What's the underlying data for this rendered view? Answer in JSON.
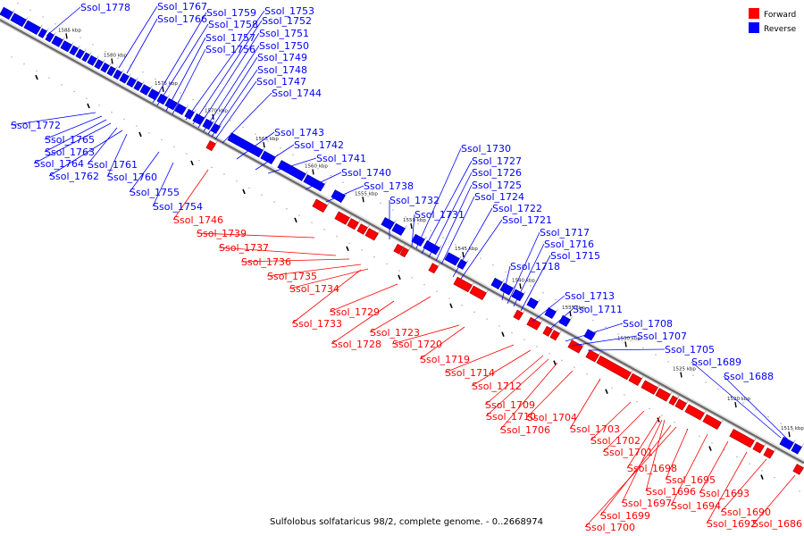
{
  "caption": "Sulfolobus solfataricus 98/2, complete genome. - 0..2668974",
  "legend": [
    {
      "label": "Forward",
      "color": "#ff0000"
    },
    {
      "label": "Reverse",
      "color": "#0000ff"
    }
  ],
  "colors": {
    "forward": "#ff0000",
    "reverse": "#0000ff",
    "axis": "#888888"
  },
  "ticks": [
    "1585 kbp",
    "1580 kbp",
    "1575 kbp",
    "1570 kbp",
    "1565 kbp",
    "1560 kbp",
    "1555 kbp",
    "1550 kbp",
    "1545 kbp",
    "1540 kbp",
    "1535 kbp",
    "1530 kbp",
    "1525 kbp",
    "1520 kbp",
    "1515 kbp"
  ],
  "reverse_genes": [
    "Ssol_1778",
    "Ssol_1767",
    "Ssol_1766",
    "Ssol_1759",
    "Ssol_1758",
    "Ssol_1757",
    "Ssol_1756",
    "Ssol_1753",
    "Ssol_1752",
    "Ssol_1751",
    "Ssol_1750",
    "Ssol_1749",
    "Ssol_1748",
    "Ssol_1747",
    "Ssol_1744",
    "Ssol_1772",
    "Ssol_1765",
    "Ssol_1763",
    "Ssol_1764",
    "Ssol_1761",
    "Ssol_1762",
    "Ssol_1760",
    "Ssol_1755",
    "Ssol_1754",
    "Ssol_1743",
    "Ssol_1742",
    "Ssol_1741",
    "Ssol_1740",
    "Ssol_1738",
    "Ssol_1732",
    "Ssol_1731",
    "Ssol_1730",
    "Ssol_1727",
    "Ssol_1726",
    "Ssol_1725",
    "Ssol_1724",
    "Ssol_1722",
    "Ssol_1721",
    "Ssol_1717",
    "Ssol_1716",
    "Ssol_1715",
    "Ssol_1718",
    "Ssol_1713",
    "Ssol_1711",
    "Ssol_1708",
    "Ssol_1707",
    "Ssol_1705",
    "Ssol_1689",
    "Ssol_1688"
  ],
  "forward_genes": [
    "Ssol_1746",
    "Ssol_1739",
    "Ssol_1737",
    "Ssol_1736",
    "Ssol_1735",
    "Ssol_1734",
    "Ssol_1733",
    "Ssol_1729",
    "Ssol_1728",
    "Ssol_1723",
    "Ssol_1720",
    "Ssol_1719",
    "Ssol_1714",
    "Ssol_1712",
    "Ssol_1709",
    "Ssol_1710",
    "Ssol_1706",
    "Ssol_1704",
    "Ssol_1703",
    "Ssol_1702",
    "Ssol_1701",
    "Ssol_1698",
    "Ssol_1696",
    "Ssol_1697",
    "Ssol_1699",
    "Ssol_1700",
    "Ssol_1695",
    "Ssol_1694",
    "Ssol_1693",
    "Ssol_1692",
    "Ssol_1690",
    "Ssol_1686"
  ]
}
